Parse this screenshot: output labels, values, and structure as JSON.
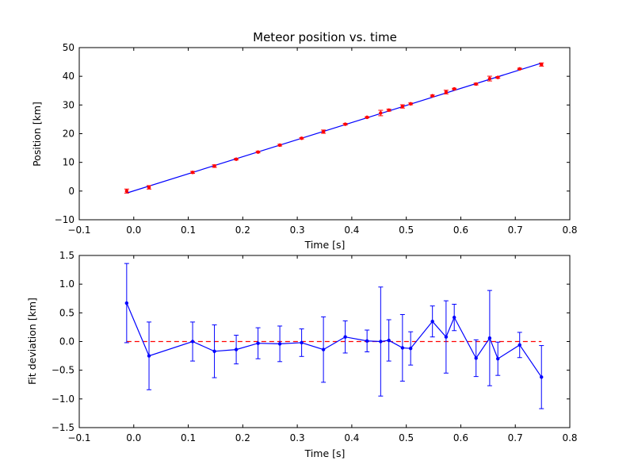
{
  "chart_data": [
    {
      "type": "scatter",
      "title": "Meteor position vs. time",
      "xlabel": "Time [s]",
      "ylabel": "Position [km]",
      "xlim": [
        -0.1,
        0.8
      ],
      "ylim": [
        -10,
        50
      ],
      "xticks": [
        -0.1,
        0.0,
        0.1,
        0.2,
        0.3,
        0.4,
        0.5,
        0.6,
        0.7,
        0.8
      ],
      "xtick_labels": [
        "−0.1",
        "0.0",
        "0.1",
        "0.2",
        "0.3",
        "0.4",
        "0.5",
        "0.6",
        "0.7",
        "0.8"
      ],
      "yticks": [
        -10,
        0,
        10,
        20,
        30,
        40,
        50
      ],
      "ytick_labels": [
        "−10",
        "0",
        "10",
        "20",
        "30",
        "40",
        "50"
      ],
      "grid": false,
      "series": [
        {
          "type": "errorbar",
          "color": "#ff0000",
          "marker_color": "#ff0000",
          "points": [
            {
              "x": -0.013,
              "y": 0.0,
              "err": 0.7
            },
            {
              "x": 0.028,
              "y": 1.3,
              "err": 0.6
            },
            {
              "x": 0.108,
              "y": 6.5,
              "err": 0.35
            },
            {
              "x": 0.148,
              "y": 8.7,
              "err": 0.45
            },
            {
              "x": 0.188,
              "y": 11.1,
              "err": 0.25
            },
            {
              "x": 0.228,
              "y": 13.6,
              "err": 0.27
            },
            {
              "x": 0.268,
              "y": 16.0,
              "err": 0.3
            },
            {
              "x": 0.308,
              "y": 18.4,
              "err": 0.24
            },
            {
              "x": 0.348,
              "y": 20.7,
              "err": 0.57
            },
            {
              "x": 0.388,
              "y": 23.3,
              "err": 0.28
            },
            {
              "x": 0.428,
              "y": 25.7,
              "err": 0.2
            },
            {
              "x": 0.453,
              "y": 27.2,
              "err": 0.95
            },
            {
              "x": 0.468,
              "y": 28.2,
              "err": 0.35
            },
            {
              "x": 0.493,
              "y": 29.5,
              "err": 0.58
            },
            {
              "x": 0.508,
              "y": 30.4,
              "err": 0.3
            },
            {
              "x": 0.548,
              "y": 33.2,
              "err": 0.27
            },
            {
              "x": 0.573,
              "y": 34.5,
              "err": 0.64
            },
            {
              "x": 0.588,
              "y": 35.6,
              "err": 0.23
            },
            {
              "x": 0.628,
              "y": 37.3,
              "err": 0.32
            },
            {
              "x": 0.653,
              "y": 39.2,
              "err": 0.83
            },
            {
              "x": 0.668,
              "y": 39.6,
              "err": 0.3
            },
            {
              "x": 0.708,
              "y": 42.6,
              "err": 0.22
            },
            {
              "x": 0.748,
              "y": 44.1,
              "err": 0.56
            }
          ]
        },
        {
          "type": "line",
          "color": "#0000ff",
          "x": [
            -0.013,
            0.748
          ],
          "y": [
            -0.7,
            44.6
          ]
        }
      ]
    },
    {
      "type": "line",
      "title": "",
      "xlabel": "Time [s]",
      "ylabel": "Fit deviation [km]",
      "xlim": [
        -0.1,
        0.8
      ],
      "ylim": [
        -1.5,
        1.5
      ],
      "xticks": [
        -0.1,
        0.0,
        0.1,
        0.2,
        0.3,
        0.4,
        0.5,
        0.6,
        0.7,
        0.8
      ],
      "xtick_labels": [
        "−0.1",
        "0.0",
        "0.1",
        "0.2",
        "0.3",
        "0.4",
        "0.5",
        "0.6",
        "0.7",
        "0.8"
      ],
      "yticks": [
        -1.5,
        -1.0,
        -0.5,
        0.0,
        0.5,
        1.0,
        1.5
      ],
      "ytick_labels": [
        "−1.5",
        "−1.0",
        "−0.5",
        "0.0",
        "0.5",
        "1.0",
        "1.5"
      ],
      "grid": false,
      "series": [
        {
          "type": "errorbar-line",
          "color": "#0000ff",
          "points": [
            {
              "x": -0.013,
              "y": 0.67,
              "err": 0.69
            },
            {
              "x": 0.028,
              "y": -0.25,
              "err": 0.59
            },
            {
              "x": 0.108,
              "y": 0.0,
              "err": 0.34
            },
            {
              "x": 0.148,
              "y": -0.17,
              "err": 0.46
            },
            {
              "x": 0.188,
              "y": -0.14,
              "err": 0.25
            },
            {
              "x": 0.228,
              "y": -0.03,
              "err": 0.27
            },
            {
              "x": 0.268,
              "y": -0.04,
              "err": 0.31
            },
            {
              "x": 0.308,
              "y": -0.02,
              "err": 0.24
            },
            {
              "x": 0.348,
              "y": -0.14,
              "err": 0.57
            },
            {
              "x": 0.388,
              "y": 0.08,
              "err": 0.28
            },
            {
              "x": 0.428,
              "y": 0.01,
              "err": 0.19
            },
            {
              "x": 0.453,
              "y": 0.0,
              "err": 0.95
            },
            {
              "x": 0.468,
              "y": 0.02,
              "err": 0.36
            },
            {
              "x": 0.493,
              "y": -0.11,
              "err": 0.58
            },
            {
              "x": 0.508,
              "y": -0.12,
              "err": 0.29
            },
            {
              "x": 0.548,
              "y": 0.35,
              "err": 0.27
            },
            {
              "x": 0.573,
              "y": 0.08,
              "err": 0.63
            },
            {
              "x": 0.588,
              "y": 0.42,
              "err": 0.23
            },
            {
              "x": 0.628,
              "y": -0.29,
              "err": 0.32
            },
            {
              "x": 0.653,
              "y": 0.06,
              "err": 0.83
            },
            {
              "x": 0.668,
              "y": -0.3,
              "err": 0.29
            },
            {
              "x": 0.708,
              "y": -0.06,
              "err": 0.22
            },
            {
              "x": 0.748,
              "y": -0.62,
              "err": 0.55
            }
          ]
        },
        {
          "type": "dashed-line",
          "color": "#ff0000",
          "x": [
            -0.013,
            0.748
          ],
          "y": [
            0.0,
            0.0
          ]
        }
      ]
    }
  ]
}
